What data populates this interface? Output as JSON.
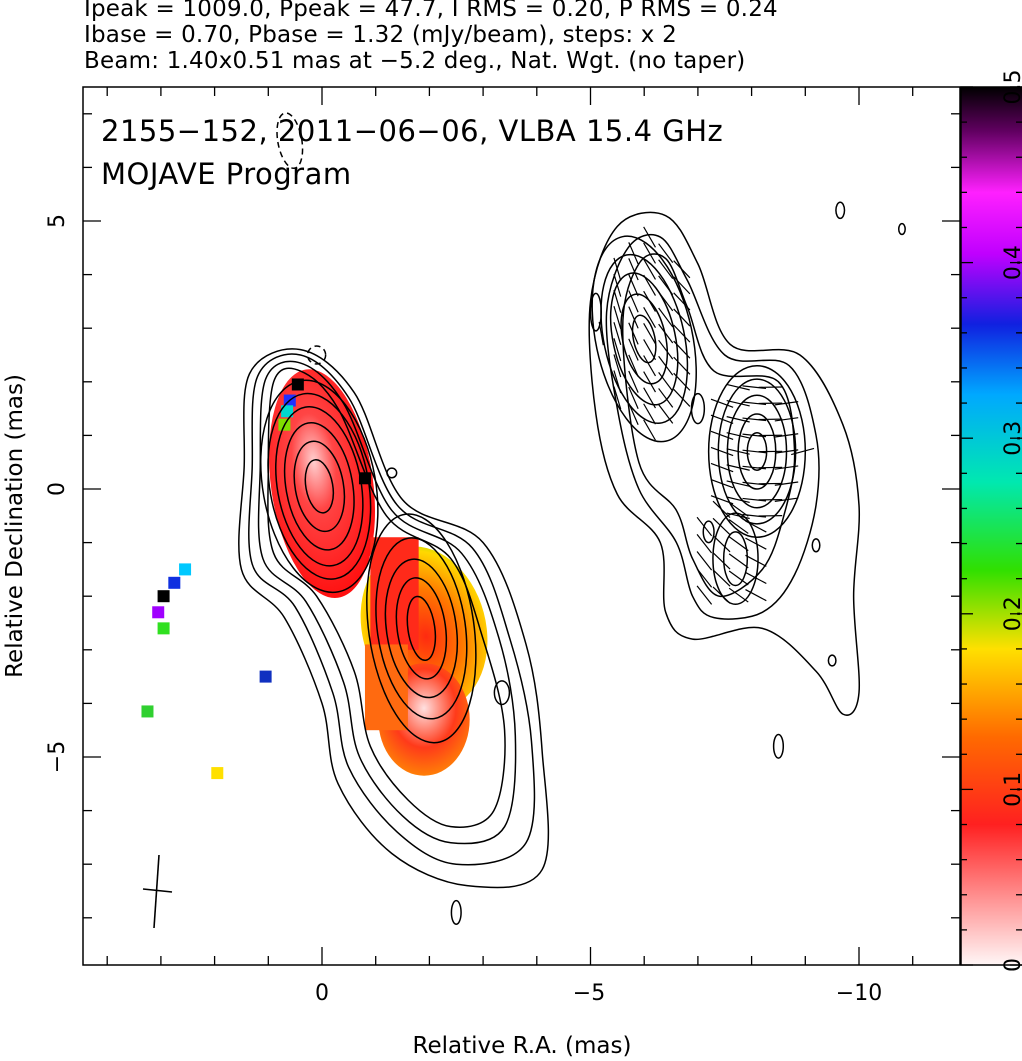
{
  "header": {
    "line1": "Ipeak = 1009.0, Ppeak = 47.7, I RMS = 0.20, P RMS = 0.24",
    "line2": "Ibase = 0.70, Pbase = 1.32 (mJy/beam), steps: x 2",
    "line3": "Beam: 1.40x0.51 mas at −5.2 deg., Nat. Wgt. (no taper)"
  },
  "chart_data": [
    {
      "type": "heatmap",
      "title": "2155−152, 2011−06−06, VLBA 15.4 GHz",
      "subtitle": "MOJAVE Program",
      "xlabel": "Relative R.A. (mas)",
      "ylabel": "Relative Declination (mas)",
      "xlim": [
        4.5,
        -11.9
      ],
      "ylim": [
        -8.8,
        7.5
      ],
      "x_ticks": [
        "0",
        "−5",
        "−10"
      ],
      "y_ticks": [
        "5",
        "0",
        "−5"
      ],
      "colorbar": {
        "range": [
          0,
          0.5
        ],
        "ticks": [
          "0",
          "0.1",
          "0.2",
          "0.3",
          "0.4",
          "0.5"
        ]
      },
      "left_panel": {
        "description_values": "total intensity contours with fractional polarization colour",
        "components": [
          {
            "x": 0.0,
            "y": 0.0,
            "frac_pol": 0.05
          },
          {
            "x": -1.9,
            "y": -2.5,
            "frac_pol": 0.12
          },
          {
            "x": -1.9,
            "y": -4.3,
            "frac_pol": 0.09
          }
        ]
      },
      "right_panel": {
        "description_values": "polarized intensity contours with EVPA ticks",
        "components": [
          {
            "x": -6.0,
            "y": 2.8
          },
          {
            "x": -8.1,
            "y": 0.7
          },
          {
            "x": -7.7,
            "y": -1.3
          }
        ]
      }
    }
  ]
}
